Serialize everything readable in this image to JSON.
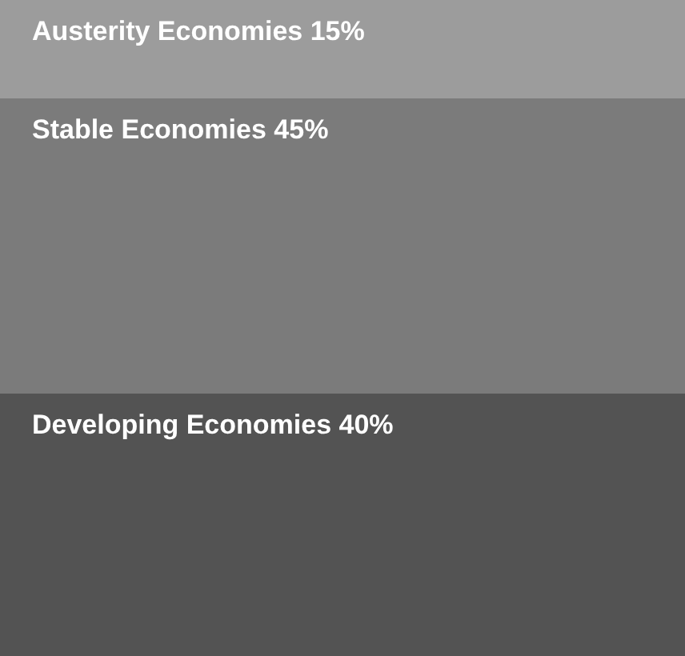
{
  "chart_data": {
    "type": "bar",
    "stacked": true,
    "categories": [
      null
    ],
    "series": [
      {
        "color": "#535353",
        "values": [
          40
        ],
        "value_labels": [
          "Developing Economies 40%"
        ]
      },
      {
        "color": "#7b7b7b",
        "values": [
          45
        ],
        "value_labels": [
          "Stable Economies 45%"
        ]
      },
      {
        "color": "#9c9c9c",
        "values": [
          15
        ],
        "value_labels": [
          "Austerity Economies 15%"
        ]
      }
    ]
  }
}
